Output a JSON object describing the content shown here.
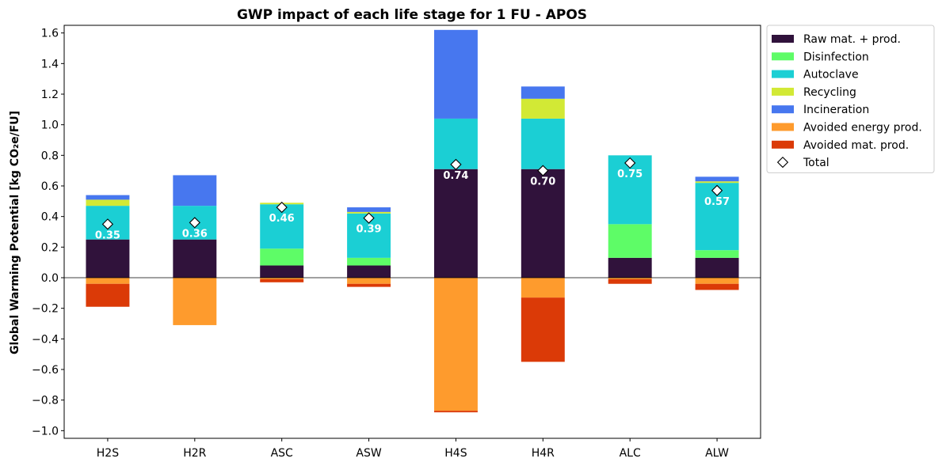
{
  "chart_data": {
    "type": "bar",
    "stacked": true,
    "title": "GWP impact of each life stage for 1 FU - APOS",
    "ylabel": "Global Warming Potential [kg CO₂e/FU]",
    "ylim": [
      -1.05,
      1.65
    ],
    "yticks": [
      -1.0,
      -0.8,
      -0.6,
      -0.4,
      -0.2,
      0.0,
      0.2,
      0.4,
      0.6,
      0.8,
      1.0,
      1.2,
      1.4,
      1.6
    ],
    "ytick_labels": [
      "−1.0",
      "−0.8",
      "−0.6",
      "−0.4",
      "−0.2",
      "0.0",
      "0.2",
      "0.4",
      "0.6",
      "0.8",
      "1.0",
      "1.2",
      "1.4",
      "1.6"
    ],
    "grid": false,
    "legend": "outside-top-right",
    "categories": [
      "H2S",
      "H2R",
      "ASC",
      "ASW",
      "H4S",
      "H4R",
      "ALC",
      "ALW"
    ],
    "series": [
      {
        "name": "Raw mat. + prod.",
        "color": "#30123b",
        "values": [
          0.25,
          0.25,
          0.08,
          0.08,
          0.71,
          0.71,
          0.13,
          0.13
        ]
      },
      {
        "name": "Disinfection",
        "color": "#5efc67",
        "values": [
          0.0,
          0.0,
          0.11,
          0.05,
          0.0,
          0.0,
          0.22,
          0.05
        ]
      },
      {
        "name": "Autoclave",
        "color": "#1bcfd4",
        "values": [
          0.22,
          0.22,
          0.29,
          0.29,
          0.33,
          0.33,
          0.45,
          0.44
        ]
      },
      {
        "name": "Recycling",
        "color": "#d2e935",
        "values": [
          0.04,
          0.0,
          0.01,
          0.01,
          0.0,
          0.13,
          0.0,
          0.01
        ]
      },
      {
        "name": "Incineration",
        "color": "#4777ef",
        "values": [
          0.03,
          0.2,
          0.0,
          0.03,
          0.58,
          0.08,
          0.0,
          0.03
        ]
      },
      {
        "name": "Avoided energy prod.",
        "color": "#fe9b2d",
        "values": [
          -0.04,
          -0.31,
          -0.01,
          -0.04,
          -0.87,
          -0.13,
          -0.01,
          -0.04
        ]
      },
      {
        "name": "Avoided mat. prod.",
        "color": "#db3a07",
        "values": [
          -0.15,
          0.0,
          -0.02,
          -0.02,
          -0.01,
          -0.42,
          -0.03,
          -0.04
        ]
      }
    ],
    "total": {
      "name": "Total",
      "values": [
        0.35,
        0.36,
        0.46,
        0.39,
        0.74,
        0.7,
        0.75,
        0.57
      ],
      "labels": [
        "0.35",
        "0.36",
        "0.46",
        "0.39",
        "0.74",
        "0.70",
        "0.75",
        "0.57"
      ]
    }
  }
}
